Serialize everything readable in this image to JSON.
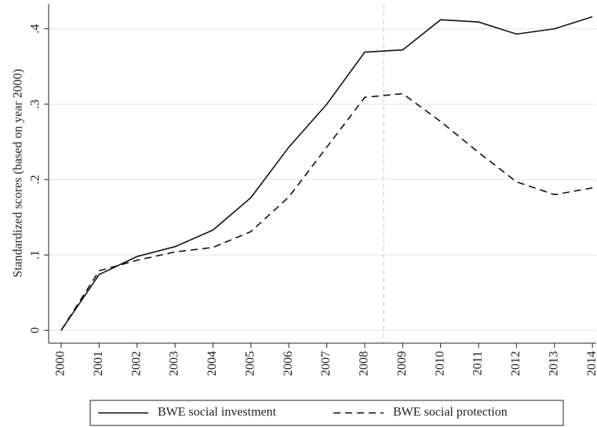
{
  "chart_data": {
    "type": "line",
    "y_label": "Standardized scores (based on year 2000)",
    "x": [
      2000,
      2001,
      2002,
      2003,
      2004,
      2005,
      2006,
      2007,
      2008,
      2009,
      2010,
      2011,
      2012,
      2013,
      2014
    ],
    "series": [
      {
        "name": "BWE social investment",
        "color": "#111111",
        "dash": "solid",
        "values": [
          0,
          0.074,
          0.098,
          0.111,
          0.133,
          0.176,
          0.243,
          0.3,
          0.369,
          0.372,
          0.412,
          0.409,
          0.393,
          0.4,
          0.416
        ]
      },
      {
        "name": "BWE social protection",
        "color": "#111111",
        "dash": "dashed",
        "values": [
          0,
          0.079,
          0.093,
          0.104,
          0.11,
          0.131,
          0.177,
          0.243,
          0.309,
          0.314,
          0.277,
          0.236,
          0.197,
          0.18,
          0.189
        ]
      }
    ],
    "xlim": [
      1999.67,
      2014.1
    ],
    "xticks": [
      2000,
      2001,
      2002,
      2003,
      2004,
      2005,
      2006,
      2007,
      2008,
      2009,
      2010,
      2011,
      2012,
      2013,
      2014
    ],
    "ylim": [
      -0.017,
      0.433
    ],
    "yticks": [
      0,
      {
        "value": 0.1,
        "label": ".1"
      },
      {
        "value": 0.2,
        "label": ".2"
      },
      {
        "value": 0.3,
        "label": ".3"
      },
      {
        "value": 0.4,
        "label": ".4"
      }
    ],
    "grid": true,
    "vline": 2008.5,
    "legend": "bottom"
  }
}
